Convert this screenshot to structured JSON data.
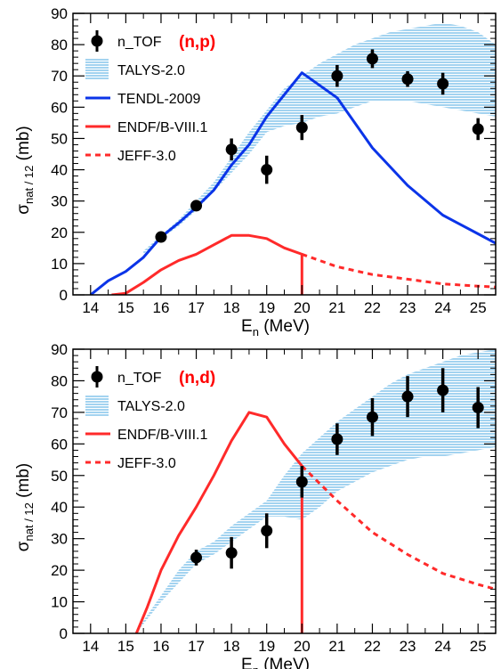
{
  "chart_data": [
    {
      "type": "line",
      "reaction_label": "(n,p)",
      "reaction_color": "#ff0000",
      "xlabel": "E",
      "xlabel_sub": "n",
      "xlabel_unit": "(MeV)",
      "ylabel": "σ",
      "ylabel_sub": "nat / 12",
      "ylabel_unit": "(mb)",
      "xlim": [
        13.5,
        25.5
      ],
      "ylim": [
        0,
        90
      ],
      "x_ticks": [
        14,
        15,
        16,
        17,
        18,
        19,
        20,
        21,
        22,
        23,
        24,
        25
      ],
      "y_ticks": [
        0,
        10,
        20,
        30,
        40,
        50,
        60,
        70,
        80,
        90
      ],
      "legend_position": "top-left",
      "series": [
        {
          "name": "n_TOF",
          "kind": "points",
          "color": "#000000",
          "points": [
            {
              "x": 16,
              "y": 18.5,
              "err": 1.5
            },
            {
              "x": 17,
              "y": 28.5,
              "err": 1.5
            },
            {
              "x": 18,
              "y": 46.5,
              "err": 3.5
            },
            {
              "x": 19,
              "y": 40,
              "err": 4.5
            },
            {
              "x": 20,
              "y": 53.5,
              "err": 4
            },
            {
              "x": 21,
              "y": 70,
              "err": 3.5
            },
            {
              "x": 22,
              "y": 75.5,
              "err": 3
            },
            {
              "x": 23,
              "y": 69,
              "err": 2.5
            },
            {
              "x": 24,
              "y": 67.5,
              "err": 3.5
            },
            {
              "x": 25,
              "y": 53,
              "err": 3.5
            }
          ]
        },
        {
          "name": "TALYS-2.0",
          "kind": "band",
          "color": "#9fcfee",
          "x": [
            15.5,
            16,
            16.5,
            17,
            17.5,
            18,
            18.5,
            19,
            19.5,
            20,
            20.5,
            21,
            21.5,
            22,
            22.5,
            23,
            23.5,
            24,
            24.5,
            25,
            25.5
          ],
          "lower": [
            13,
            18,
            22,
            27,
            33,
            39,
            45,
            52,
            54,
            55,
            57,
            58,
            60,
            62,
            62,
            62,
            61,
            60,
            59,
            58,
            57
          ],
          "upper": [
            14,
            19,
            24,
            30,
            36,
            44,
            52,
            59,
            66,
            70,
            74,
            77,
            80,
            82,
            84,
            85,
            86,
            87,
            86,
            84,
            80
          ]
        },
        {
          "name": "TENDL-2009",
          "kind": "line",
          "color": "#0b34e8",
          "dash": "solid",
          "x": [
            14,
            14.5,
            15,
            15.5,
            16,
            16.5,
            17,
            17.5,
            18,
            18.5,
            19,
            19.5,
            20,
            21,
            22,
            23,
            24,
            25,
            25.5
          ],
          "y": [
            0,
            4.5,
            7.5,
            12,
            18.5,
            23,
            28,
            33.5,
            41.5,
            48,
            57,
            64,
            71,
            63,
            47,
            35,
            25.5,
            19.5,
            16.5
          ]
        },
        {
          "name": "ENDF/B-VIII.1",
          "kind": "line",
          "color": "#ff2a2a",
          "dash": "solid",
          "x": [
            14.6,
            15,
            15.5,
            16,
            16.5,
            17,
            17.5,
            18,
            18.5,
            19,
            19.5,
            20,
            20,
            20
          ],
          "y": [
            0,
            0.5,
            4,
            8,
            11,
            13,
            16,
            19,
            19,
            18,
            15,
            13,
            13,
            0
          ]
        },
        {
          "name": "JEFF-3.0",
          "kind": "line",
          "color": "#ff2a2a",
          "dash": "dashed",
          "x": [
            20,
            21,
            22,
            23,
            24,
            25,
            25.5
          ],
          "y": [
            13,
            9,
            6.5,
            5,
            3.5,
            2.8,
            2.5
          ]
        }
      ]
    },
    {
      "type": "line",
      "reaction_label": "(n,d)",
      "reaction_color": "#ff0000",
      "xlabel": "E",
      "xlabel_sub": "n",
      "xlabel_unit": "(MeV)",
      "ylabel": "σ",
      "ylabel_sub": "nat / 12",
      "ylabel_unit": "(mb)",
      "xlim": [
        13.5,
        25.5
      ],
      "ylim": [
        0,
        90
      ],
      "x_ticks": [
        14,
        15,
        16,
        17,
        18,
        19,
        20,
        21,
        22,
        23,
        24,
        25
      ],
      "y_ticks": [
        0,
        10,
        20,
        30,
        40,
        50,
        60,
        70,
        80,
        90
      ],
      "legend_position": "top-left",
      "series": [
        {
          "name": "n_TOF",
          "kind": "points",
          "color": "#000000",
          "points": [
            {
              "x": 17,
              "y": 24,
              "err": 2.5
            },
            {
              "x": 18,
              "y": 25.5,
              "err": 5
            },
            {
              "x": 19,
              "y": 32.5,
              "err": 5.5
            },
            {
              "x": 20,
              "y": 48,
              "err": 5
            },
            {
              "x": 21,
              "y": 61.5,
              "err": 5
            },
            {
              "x": 22,
              "y": 68.5,
              "err": 6
            },
            {
              "x": 23,
              "y": 75,
              "err": 6.5
            },
            {
              "x": 24,
              "y": 77,
              "err": 7
            },
            {
              "x": 25,
              "y": 71.5,
              "err": 6.5
            }
          ]
        },
        {
          "name": "TALYS-2.0",
          "kind": "band",
          "color": "#9fcfee",
          "x": [
            15.3,
            15.5,
            16,
            16.5,
            17,
            17.5,
            18,
            18.5,
            19,
            19.5,
            20,
            20.5,
            21,
            21.5,
            22,
            22.5,
            23,
            23.5,
            24,
            24.5,
            25,
            25.5
          ],
          "lower": [
            0,
            3,
            10,
            16,
            22,
            25,
            29,
            33,
            37,
            37,
            36,
            40,
            45,
            48,
            51,
            53,
            55,
            56,
            56,
            57,
            58,
            59
          ],
          "upper": [
            1,
            4,
            12,
            20,
            26,
            29,
            34,
            38,
            42,
            50,
            57,
            62,
            67,
            71,
            75,
            79,
            82,
            84,
            86,
            88,
            89,
            90
          ]
        },
        {
          "name": "ENDF/B-VIII.1",
          "kind": "line",
          "color": "#ff2a2a",
          "dash": "solid",
          "x": [
            15.3,
            15.6,
            16,
            16.5,
            17,
            17.5,
            18,
            18.5,
            19,
            19.5,
            20,
            20,
            20
          ],
          "y": [
            0,
            8,
            20,
            31,
            40,
            50,
            61,
            70,
            68.5,
            60,
            53,
            53,
            0
          ]
        },
        {
          "name": "JEFF-3.0",
          "kind": "line",
          "color": "#ff2a2a",
          "dash": "dashed",
          "x": [
            20,
            21,
            22,
            23,
            24,
            25,
            25.5
          ],
          "y": [
            53,
            42,
            32,
            25,
            19,
            15.5,
            14
          ]
        }
      ]
    }
  ]
}
